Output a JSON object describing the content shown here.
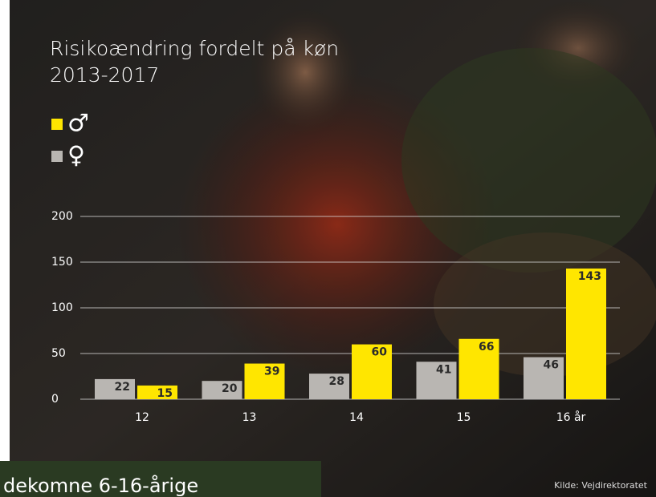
{
  "chart_data": {
    "type": "bar",
    "title": "Risikoændring fordelt på køn",
    "subtitle": "2013-2017",
    "categories": [
      "12",
      "13",
      "14",
      "15",
      "16 år"
    ],
    "series": [
      {
        "name": "♀",
        "color": "#b9b6b2",
        "values": [
          22,
          20,
          28,
          41,
          46
        ]
      },
      {
        "name": "♂",
        "color": "#ffe600",
        "values": [
          15,
          39,
          60,
          66,
          143
        ]
      }
    ],
    "ylim": [
      0,
      200
    ],
    "yticks": [
      0,
      50,
      100,
      150,
      200
    ],
    "grid": true,
    "source": "Kilde: Vejdirektoratet"
  },
  "caption": "dekomne 6-16-årige"
}
